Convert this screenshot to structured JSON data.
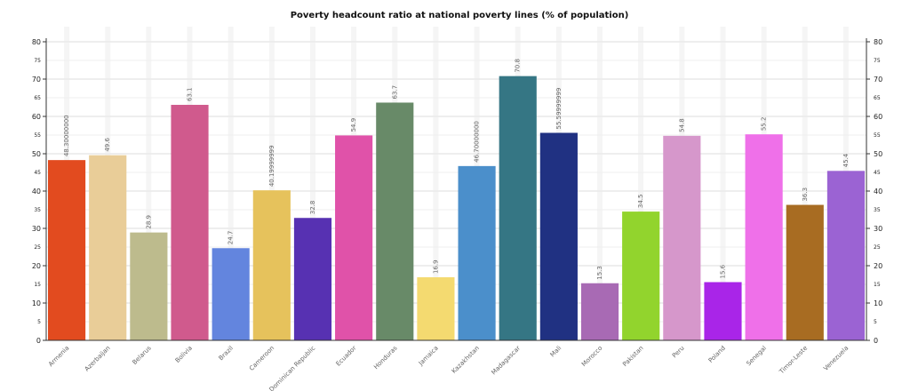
{
  "chart_data": {
    "type": "bar",
    "title": "Poverty headcount ratio at national poverty lines (% of population)",
    "xlabel": "",
    "ylabel": "",
    "ylim": [
      0,
      80
    ],
    "y_major_ticks": [
      "0",
      "10",
      "20",
      "30",
      "40",
      "50",
      "60",
      "70",
      "80"
    ],
    "y_minor_ticks": [
      "5",
      "15",
      "25",
      "35",
      "45",
      "55",
      "65",
      "75"
    ],
    "grid": true,
    "categories": [
      "Armenia",
      "Azerbaijan",
      "Belarus",
      "Bolivia",
      "Brazil",
      "Cameroon",
      "Dominican Republic",
      "Ecuador",
      "Honduras",
      "Jamaica",
      "Kazakhstan",
      "Madagascar",
      "Mali",
      "Morocco",
      "Pakistan",
      "Peru",
      "Poland",
      "Senegal",
      "Timor-Leste",
      "Venezuela"
    ],
    "values": [
      48.3,
      49.6,
      28.9,
      63.1,
      24.7,
      40.2,
      32.8,
      54.9,
      63.7,
      16.9,
      46.7,
      70.8,
      55.6,
      15.3,
      34.5,
      54.8,
      15.6,
      55.2,
      36.3,
      45.4
    ],
    "data_labels": [
      "48.30000000",
      "49.6",
      "28.9",
      "63.1",
      "24.7",
      "40.19999999",
      "32.8",
      "54.9",
      "63.7",
      "16.9",
      "46.70000000",
      "70.8",
      "55.59999999",
      "15.3",
      "34.5",
      "54.8",
      "15.6",
      "55.2",
      "36.3",
      "45.4"
    ],
    "colors": [
      "#e24b1f",
      "#e9cd98",
      "#bdbb8d",
      "#d05a8d",
      "#6385de",
      "#e6c25c",
      "#5731b2",
      "#e052a9",
      "#688a68",
      "#f4da70",
      "#4b8fcb",
      "#357684",
      "#203182",
      "#a86ab4",
      "#92d42d",
      "#d697cb",
      "#a925e8",
      "#ef70e9",
      "#a86c22",
      "#9b63d3"
    ]
  }
}
